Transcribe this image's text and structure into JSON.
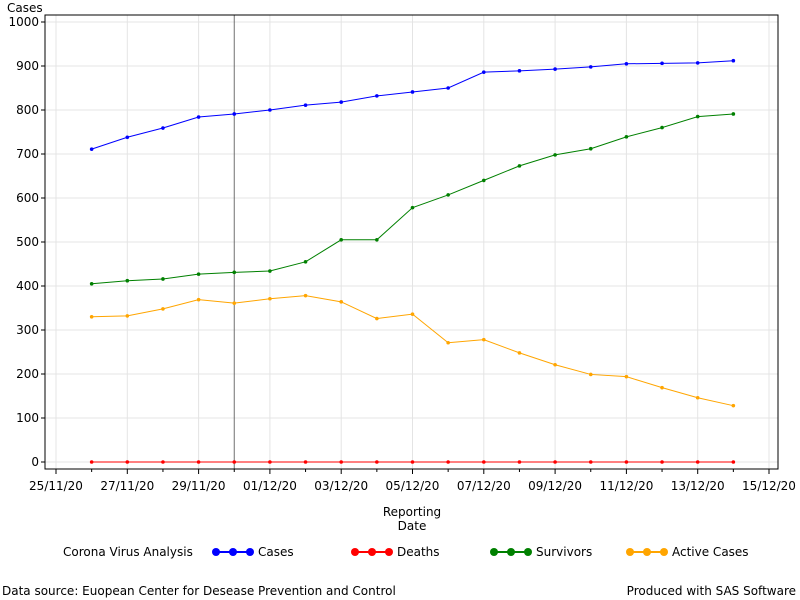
{
  "chart_data": {
    "type": "line",
    "title": "",
    "ylabel": "Cases",
    "xlabel_lines": [
      "Reporting",
      "Date"
    ],
    "ylim": [
      0,
      1000
    ],
    "y_ticks": [
      0,
      100,
      200,
      300,
      400,
      500,
      600,
      700,
      800,
      900,
      1000
    ],
    "x_tick_labels": [
      "25/11/20",
      "27/11/20",
      "29/11/20",
      "01/12/20",
      "03/12/20",
      "05/12/20",
      "07/12/20",
      "09/12/20",
      "11/12/20",
      "13/12/20",
      "15/12/20"
    ],
    "x_start_date": "2020-11-25",
    "x_end_date": "2020-12-15",
    "x": [
      "2020-11-26",
      "2020-11-27",
      "2020-11-28",
      "2020-11-29",
      "2020-11-30",
      "2020-12-01",
      "2020-12-02",
      "2020-12-03",
      "2020-12-04",
      "2020-12-05",
      "2020-12-06",
      "2020-12-07",
      "2020-12-08",
      "2020-12-09",
      "2020-12-10",
      "2020-12-11",
      "2020-12-12",
      "2020-12-13",
      "2020-12-14"
    ],
    "reference_line_date": "2020-11-30",
    "grid": true,
    "legend_title": "Corona Virus Analysis",
    "legend_position": "bottom",
    "series": [
      {
        "name": "Cases",
        "color": "#0000ff",
        "values": [
          711,
          738,
          759,
          784,
          791,
          800,
          811,
          818,
          832,
          841,
          850,
          886,
          889,
          893,
          898,
          905,
          906,
          907,
          912
        ]
      },
      {
        "name": "Deaths",
        "color": "#ff0000",
        "values": [
          0,
          0,
          0,
          0,
          0,
          0,
          0,
          0,
          0,
          0,
          0,
          0,
          0,
          0,
          0,
          0,
          0,
          0,
          0
        ]
      },
      {
        "name": "Survivors",
        "color": "#008000",
        "values": [
          405,
          412,
          416,
          427,
          431,
          434,
          455,
          505,
          505,
          578,
          607,
          640,
          673,
          698,
          712,
          739,
          760,
          785,
          791
        ]
      },
      {
        "name": "Active Cases",
        "color": "#ffa500",
        "values": [
          330,
          332,
          348,
          369,
          361,
          371,
          378,
          364,
          326,
          336,
          271,
          278,
          248,
          221,
          199,
          194,
          169,
          146,
          128
        ]
      }
    ]
  },
  "footer": {
    "source": "Data source: Euopean Center for Desease Prevention and Control",
    "produced": "Produced with SAS Software"
  }
}
